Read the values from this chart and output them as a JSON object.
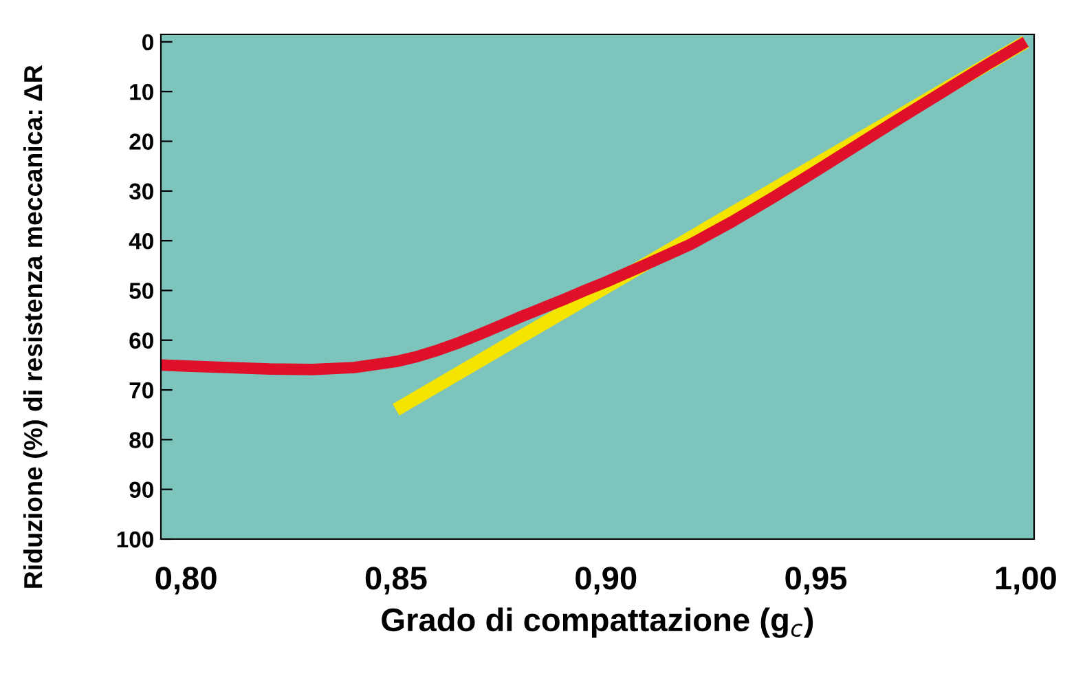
{
  "chart_data": {
    "type": "line",
    "xlabel": "Grado di compattazione (g$_{c}$)",
    "ylabel": "Riduzione (%) di resistenza meccanica: ΔR",
    "xlim": [
      0.794,
      1.002
    ],
    "ylim": [
      100,
      -1.5
    ],
    "xticks": [
      {
        "value": 0.8,
        "label": "0,80"
      },
      {
        "value": 0.85,
        "label": "0,85"
      },
      {
        "value": 0.9,
        "label": "0,90"
      },
      {
        "value": 0.95,
        "label": "0,95"
      },
      {
        "value": 1.0,
        "label": "1,00"
      }
    ],
    "yticks": [
      0,
      10,
      20,
      30,
      40,
      50,
      60,
      70,
      80,
      90,
      100
    ],
    "grid": false,
    "legend": false,
    "series": [
      {
        "color": "#f5e400",
        "x": [
          0.85,
          1.0
        ],
        "values": [
          74,
          0
        ]
      },
      {
        "color": "#e0102a",
        "x": [
          0.794,
          0.8,
          0.81,
          0.82,
          0.83,
          0.84,
          0.85,
          0.855,
          0.86,
          0.865,
          0.87,
          0.875,
          0.88,
          0.885,
          0.89,
          0.895,
          0.9,
          0.91,
          0.92,
          0.93,
          0.94,
          0.95,
          0.96,
          0.97,
          0.98,
          0.99,
          1.0
        ],
        "values": [
          65,
          65.2,
          65.5,
          65.8,
          65.9,
          65.5,
          64.3,
          63.3,
          62,
          60.5,
          58.8,
          57,
          55.2,
          53.5,
          51.8,
          50,
          48.3,
          44.6,
          40.8,
          36.2,
          31.2,
          26,
          20.7,
          15.4,
          10.2,
          5,
          0
        ]
      }
    ]
  }
}
